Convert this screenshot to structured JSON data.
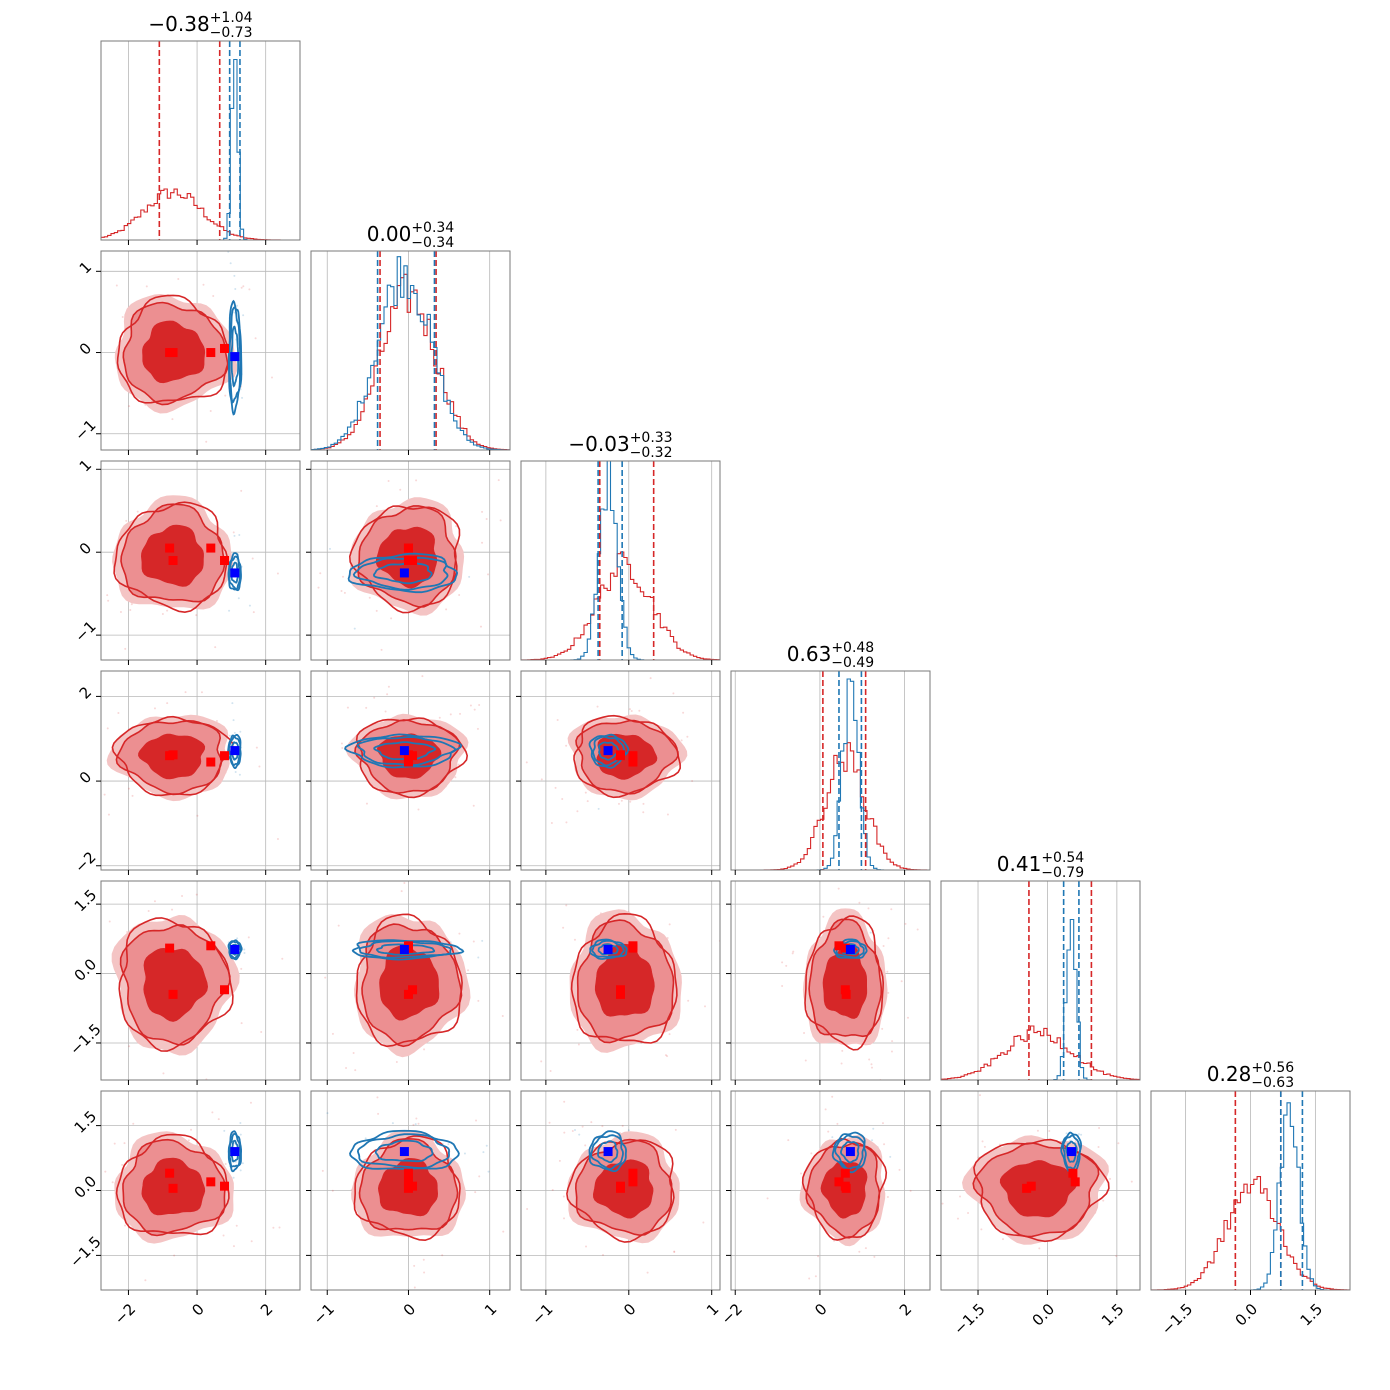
{
  "colors": {
    "prior": "#d62728",
    "posterior": "#1f77b4",
    "prior_fill_outer": "#f4c4c4",
    "prior_fill_mid": "#ec8f91",
    "prior_fill_inner": "#d62728",
    "truth_posterior": "#0000ff",
    "truth_prior": "#ff0000"
  },
  "chart_data": {
    "type": "corner",
    "n_params": 6,
    "grid": true,
    "titles": [
      {
        "value": "−0.38",
        "upper": "+1.04",
        "lower": "−0.73"
      },
      {
        "value": "0.00",
        "upper": "+0.34",
        "lower": "−0.34"
      },
      {
        "value": "−0.03",
        "upper": "+0.33",
        "lower": "−0.32"
      },
      {
        "value": "0.63",
        "upper": "+0.48",
        "lower": "−0.49"
      },
      {
        "value": "0.41",
        "upper": "+0.54",
        "lower": "−0.79"
      },
      {
        "value": "0.28",
        "upper": "+0.56",
        "lower": "−0.63"
      }
    ],
    "axis_ranges": [
      [
        -2.8,
        3.0
      ],
      [
        -1.2,
        1.25
      ],
      [
        -1.3,
        1.1
      ],
      [
        -2.1,
        2.6
      ],
      [
        -2.3,
        2.0
      ],
      [
        -2.3,
        2.3
      ]
    ],
    "ticks": [
      {
        "values": [
          -2,
          0,
          2
        ],
        "labels": [
          "−2",
          "0",
          "2"
        ]
      },
      {
        "values": [
          -1,
          0,
          1
        ],
        "labels": [
          "−1",
          "0",
          "1"
        ]
      },
      {
        "values": [
          -1,
          0,
          1
        ],
        "labels": [
          "−1",
          "0",
          "1"
        ]
      },
      {
        "values": [
          -2,
          0,
          2
        ],
        "labels": [
          "−2",
          "0",
          "2"
        ]
      },
      {
        "values": [
          -1.5,
          0.0,
          1.5
        ],
        "labels": [
          "−1.5",
          "0.0",
          "1.5"
        ]
      },
      {
        "values": [
          -1.5,
          0.0,
          1.5
        ],
        "labels": [
          "−1.5",
          "0.0",
          "1.5"
        ]
      }
    ],
    "prior": {
      "mean": [
        -0.7,
        0.0,
        -0.05,
        0.6,
        -0.2,
        0.05
      ],
      "sd": [
        0.85,
        0.34,
        0.33,
        0.48,
        0.72,
        0.6
      ],
      "quantiles": [
        [
          -1.1,
          0.66
        ],
        [
          -0.35,
          0.34
        ],
        [
          -0.35,
          0.3
        ],
        [
          0.07,
          1.08
        ],
        [
          -0.4,
          0.95
        ],
        [
          -0.35,
          0.7
        ]
      ]
    },
    "posterior": {
      "mean": [
        1.1,
        -0.05,
        -0.25,
        0.72,
        0.52,
        0.9
      ],
      "sd": [
        0.09,
        0.33,
        0.11,
        0.19,
        0.1,
        0.22
      ],
      "quantiles": [
        [
          0.95,
          1.25
        ],
        [
          -0.38,
          0.32
        ],
        [
          -0.37,
          -0.08
        ],
        [
          0.45,
          0.98
        ],
        [
          0.35,
          0.68
        ],
        [
          0.7,
          1.2
        ]
      ]
    },
    "truth_posterior": [
      1.1,
      -0.05,
      -0.25,
      0.72,
      0.52,
      0.9
    ],
    "truth_prior": [
      [
        -0.8,
        0.0,
        0.05,
        0.6,
        0.55,
        0.4
      ],
      [
        -0.7,
        0.0,
        -0.1,
        0.62,
        -0.45,
        0.05
      ],
      [
        0.4,
        0.0,
        0.05,
        0.45,
        0.6,
        0.2
      ],
      [
        0.8,
        0.05,
        -0.1,
        0.6,
        -0.35,
        0.1
      ]
    ]
  }
}
